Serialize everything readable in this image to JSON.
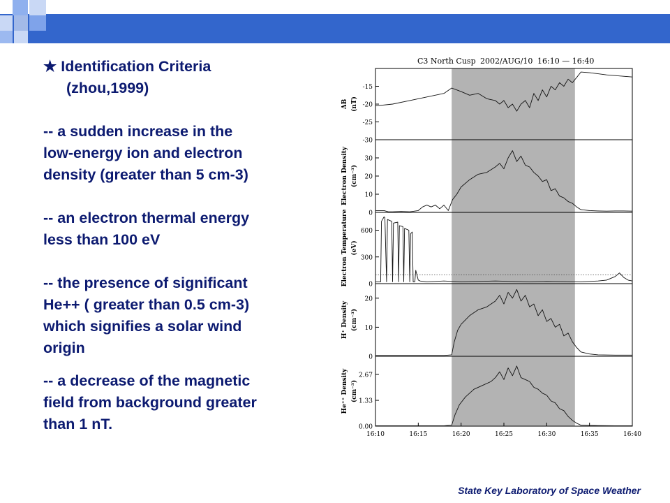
{
  "slide": {
    "title": "★ Identification Criteria",
    "citation": "(zhou,1999)",
    "criteria": [
      "-- a sudden increase in the low-energy ion and electron density (greater than 5 cm-3)",
      "-- an electron thermal energy less than 100 eV",
      "-- the presence of significant He++ ( greater than 0.5 cm-3) which signifies a solar wind origin",
      "-- a decrease of the magnetic field from background greater than 1 nT."
    ],
    "criteria_lines": [
      [
        "--  a sudden increase in the",
        "low-energy ion and electron",
        "density (greater than 5 cm-3)"
      ],
      [
        "--  an electron thermal energy",
        "less than 100 eV"
      ],
      [
        "--  the presence of significant",
        "He++ ( greater than 0.5 cm-3)",
        "which signifies a solar wind",
        "origin"
      ],
      [
        "--  a decrease of the magnetic",
        "field from background greater",
        "than 1 nT."
      ]
    ],
    "footer": "State Key Laboratory of Space Weather",
    "colors": {
      "header": "#3366cc",
      "text": "#0c1a70",
      "shade": "#b3b3b3"
    }
  },
  "chart_data": {
    "type": "line",
    "title": "C3 North Cusp",
    "date": "2002/AUG/10",
    "time_range": "16:10 — 16:40",
    "x_tick_labels": [
      "16:10",
      "16:15",
      "16:20",
      "16:25",
      "16:30",
      "16:35",
      "16:40"
    ],
    "xlim": [
      0,
      30
    ],
    "shaded_interval": [
      8.9,
      23.3
    ],
    "panels": [
      {
        "label": "ΔB",
        "unit": "(nT)",
        "ylim": [
          -30,
          -10
        ],
        "ticks": [
          "-15",
          "-20",
          "-25",
          "-30"
        ],
        "tick_values": [
          -15,
          -20,
          -25,
          -30
        ],
        "x": [
          0,
          2,
          4,
          6,
          8,
          8.9,
          10,
          11,
          12,
          13,
          14,
          14.5,
          15,
          15.5,
          16,
          16.5,
          17,
          17.5,
          18,
          18.5,
          19,
          19.5,
          20,
          20.5,
          21,
          21.5,
          22,
          22.5,
          23,
          23.5,
          24,
          25,
          26,
          27,
          28,
          30
        ],
        "y": [
          -20.5,
          -20,
          -19,
          -18,
          -17,
          -15.5,
          -16.5,
          -17.5,
          -17,
          -18.5,
          -19,
          -20,
          -19,
          -21,
          -20,
          -22,
          -20,
          -19,
          -21,
          -17,
          -19,
          -16,
          -18,
          -15,
          -16,
          -14,
          -15,
          -13,
          -14,
          -12.5,
          -11,
          -11.2,
          -11.5,
          -11.8,
          -12,
          -12.4
        ]
      },
      {
        "label": "Electron Density",
        "unit": "(cm⁻³)",
        "ylim": [
          0,
          40
        ],
        "ticks": [
          "30",
          "20",
          "10",
          "0"
        ],
        "tick_values": [
          30,
          20,
          10,
          0
        ],
        "x": [
          0,
          1,
          1.5,
          2,
          3,
          4,
          5,
          5.5,
          6,
          6.5,
          7,
          7.5,
          8,
          8.5,
          9,
          9.5,
          10,
          11,
          12,
          13,
          14,
          14.5,
          15,
          15.5,
          16,
          16.5,
          17,
          17.5,
          18,
          18.5,
          19,
          19.5,
          20,
          20.5,
          21,
          21.5,
          22,
          22.5,
          23,
          23.5,
          24,
          25,
          26,
          27,
          28,
          29,
          30
        ],
        "y": [
          1,
          1,
          0.3,
          0.3,
          0.5,
          0.3,
          1,
          3,
          4,
          3,
          4,
          2,
          4,
          1,
          7,
          10,
          14,
          18,
          21,
          22,
          25,
          27,
          24,
          30,
          34,
          28,
          31,
          26,
          25,
          22,
          20,
          17,
          18,
          12,
          13,
          9,
          8,
          6,
          5,
          3,
          1.5,
          1,
          0.8,
          0.7,
          0.8,
          0.8,
          0.7
        ]
      },
      {
        "label": "Electron Temperature",
        "unit": "(eV)",
        "ylim": [
          0,
          800
        ],
        "ticks": [
          "600",
          "300",
          "0"
        ],
        "tick_values": [
          600,
          300,
          0
        ],
        "dotted_level": 100,
        "x": [
          0,
          0.6,
          0.7,
          1,
          1.1,
          1.3,
          1.4,
          1.9,
          2,
          2.1,
          2.6,
          2.7,
          2.8,
          3.2,
          3.3,
          3.4,
          3.9,
          4,
          4.1,
          4.3,
          4.4,
          4.6,
          4.7,
          5,
          5.2,
          6,
          8,
          10,
          14,
          18,
          20,
          24,
          26,
          27,
          28,
          28.5,
          29,
          29.5,
          30
        ],
        "y": [
          20,
          20,
          700,
          750,
          740,
          20,
          720,
          700,
          20,
          680,
          690,
          20,
          650,
          640,
          20,
          620,
          600,
          20,
          560,
          580,
          20,
          20,
          150,
          40,
          30,
          20,
          30,
          20,
          30,
          20,
          25,
          20,
          30,
          40,
          80,
          120,
          70,
          40,
          30
        ]
      },
      {
        "label": "H⁺ Density",
        "unit": "(cm⁻³)",
        "ylim": [
          0,
          25
        ],
        "ticks": [
          "20",
          "10",
          "0"
        ],
        "tick_values": [
          20,
          10,
          0
        ],
        "x": [
          0,
          4,
          8,
          8.9,
          9.2,
          9.6,
          10,
          11,
          12,
          13,
          14,
          14.5,
          15,
          15.5,
          16,
          16.5,
          17,
          17.5,
          18,
          18.5,
          19,
          19.5,
          20,
          20.5,
          21,
          21.5,
          22,
          22.5,
          23,
          23.5,
          24,
          25,
          26,
          28,
          30
        ],
        "y": [
          0.3,
          0.3,
          0.3,
          0.5,
          5,
          9,
          11,
          14,
          16,
          17,
          19,
          21,
          18,
          22,
          20,
          23,
          19,
          21,
          17,
          18,
          14,
          16,
          12,
          13,
          10,
          11,
          7,
          8,
          5,
          3,
          1.5,
          0.8,
          0.5,
          0.4,
          0.4
        ]
      },
      {
        "label": "He⁺⁺ Density",
        "unit": "(cm⁻³)",
        "ylim": [
          0,
          3.6
        ],
        "ticks": [
          "2.67",
          "1.33",
          "0.00"
        ],
        "tick_values": [
          2.67,
          1.33,
          0
        ],
        "x": [
          0,
          4,
          8,
          8.9,
          9.3,
          9.8,
          10.5,
          11.5,
          12.5,
          13.5,
          14,
          14.5,
          15,
          15.5,
          16,
          16.5,
          17,
          17.5,
          18,
          18.5,
          19,
          19.5,
          20,
          20.5,
          21,
          21.5,
          22,
          22.5,
          23,
          23.5,
          24,
          26,
          28,
          30
        ],
        "y": [
          0.02,
          0.02,
          0.02,
          0.05,
          0.6,
          1.1,
          1.5,
          1.9,
          2.1,
          2.3,
          2.5,
          2.8,
          2.4,
          3.0,
          2.6,
          3.1,
          2.5,
          2.4,
          2.3,
          2.0,
          1.9,
          1.7,
          1.6,
          1.3,
          1.2,
          0.9,
          0.8,
          0.5,
          0.3,
          0.15,
          0.05,
          0.03,
          0.02,
          0.02
        ]
      }
    ]
  }
}
